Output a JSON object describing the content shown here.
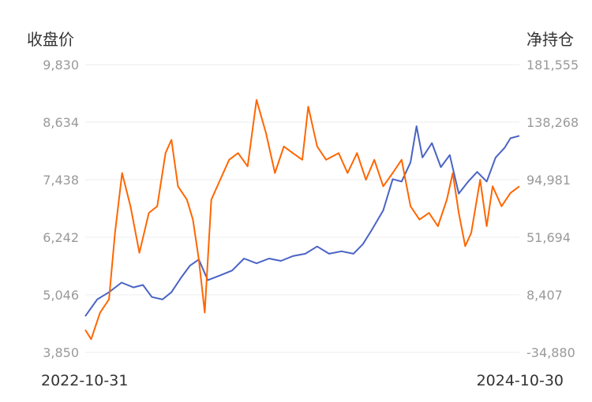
{
  "chart_data": {
    "type": "line",
    "ylabel_left": "收盘价",
    "ylabel_right": "净持仓",
    "x_range": [
      "2022-10-31",
      "2024-10-30"
    ],
    "x_tick_labels": [
      "2022-10-31",
      "2024-10-30"
    ],
    "ylim_left": [
      3850,
      9830
    ],
    "ylim_right": [
      -34880,
      181555
    ],
    "yticks_left": [
      "9,830",
      "8,634",
      "7,438",
      "6,242",
      "5,046",
      "3,850"
    ],
    "yticks_right": [
      "181,555",
      "138,268",
      "94,981",
      "51,694",
      "8,407",
      "-34,880"
    ],
    "grid": true,
    "series": [
      {
        "axis": "left",
        "color": "#4a63c4",
        "points": [
          [
            "2022-10-31",
            4600
          ],
          [
            "2022-11-20",
            4950
          ],
          [
            "2022-12-10",
            5100
          ],
          [
            "2022-12-31",
            5300
          ],
          [
            "2023-01-20",
            5200
          ],
          [
            "2023-02-05",
            5250
          ],
          [
            "2023-02-20",
            5000
          ],
          [
            "2023-03-10",
            4950
          ],
          [
            "2023-03-25",
            5100
          ],
          [
            "2023-04-10",
            5400
          ],
          [
            "2023-04-25",
            5650
          ],
          [
            "2023-05-10",
            5780
          ],
          [
            "2023-05-25",
            5350
          ],
          [
            "2023-06-15",
            5450
          ],
          [
            "2023-07-05",
            5550
          ],
          [
            "2023-07-25",
            5800
          ],
          [
            "2023-08-15",
            5700
          ],
          [
            "2023-09-05",
            5800
          ],
          [
            "2023-09-25",
            5750
          ],
          [
            "2023-10-15",
            5850
          ],
          [
            "2023-11-05",
            5900
          ],
          [
            "2023-11-25",
            6050
          ],
          [
            "2023-12-15",
            5900
          ],
          [
            "2024-01-05",
            5950
          ],
          [
            "2024-01-25",
            5900
          ],
          [
            "2024-02-10",
            6100
          ],
          [
            "2024-02-25",
            6400
          ],
          [
            "2024-03-15",
            6800
          ],
          [
            "2024-03-31",
            7450
          ],
          [
            "2024-04-15",
            7400
          ],
          [
            "2024-04-30",
            7800
          ],
          [
            "2024-05-10",
            8550
          ],
          [
            "2024-05-20",
            7900
          ],
          [
            "2024-06-05",
            8200
          ],
          [
            "2024-06-20",
            7700
          ],
          [
            "2024-07-05",
            7950
          ],
          [
            "2024-07-20",
            7150
          ],
          [
            "2024-08-05",
            7400
          ],
          [
            "2024-08-20",
            7600
          ],
          [
            "2024-09-05",
            7400
          ],
          [
            "2024-09-20",
            7900
          ],
          [
            "2024-10-05",
            8100
          ],
          [
            "2024-10-15",
            8300
          ],
          [
            "2024-10-30",
            8350
          ]
        ]
      },
      {
        "axis": "right",
        "color": "#ff6600",
        "points": [
          [
            "2022-10-31",
            -18000
          ],
          [
            "2022-11-10",
            -25000
          ],
          [
            "2022-11-25",
            -5000
          ],
          [
            "2022-12-10",
            5000
          ],
          [
            "2022-12-20",
            55000
          ],
          [
            "2023-01-01",
            100000
          ],
          [
            "2023-01-15",
            75000
          ],
          [
            "2023-01-30",
            40000
          ],
          [
            "2023-02-15",
            70000
          ],
          [
            "2023-03-01",
            75000
          ],
          [
            "2023-03-15",
            115000
          ],
          [
            "2023-03-25",
            125000
          ],
          [
            "2023-04-05",
            90000
          ],
          [
            "2023-04-20",
            80000
          ],
          [
            "2023-04-30",
            65000
          ],
          [
            "2023-05-10",
            35000
          ],
          [
            "2023-05-20",
            -5000
          ],
          [
            "2023-05-31",
            80000
          ],
          [
            "2023-06-15",
            95000
          ],
          [
            "2023-06-30",
            110000
          ],
          [
            "2023-07-15",
            115000
          ],
          [
            "2023-07-31",
            105000
          ],
          [
            "2023-08-15",
            155000
          ],
          [
            "2023-08-31",
            130000
          ],
          [
            "2023-09-15",
            100000
          ],
          [
            "2023-09-30",
            120000
          ],
          [
            "2023-10-15",
            115000
          ],
          [
            "2023-10-31",
            110000
          ],
          [
            "2023-11-10",
            150000
          ],
          [
            "2023-11-25",
            120000
          ],
          [
            "2023-12-10",
            110000
          ],
          [
            "2023-12-31",
            115000
          ],
          [
            "2024-01-15",
            100000
          ],
          [
            "2024-01-31",
            115000
          ],
          [
            "2024-02-15",
            95000
          ],
          [
            "2024-02-29",
            110000
          ],
          [
            "2024-03-15",
            90000
          ],
          [
            "2024-03-31",
            100000
          ],
          [
            "2024-04-15",
            110000
          ],
          [
            "2024-04-30",
            75000
          ],
          [
            "2024-05-15",
            65000
          ],
          [
            "2024-05-31",
            70000
          ],
          [
            "2024-06-15",
            60000
          ],
          [
            "2024-06-30",
            80000
          ],
          [
            "2024-07-10",
            100000
          ],
          [
            "2024-07-20",
            70000
          ],
          [
            "2024-07-31",
            45000
          ],
          [
            "2024-08-10",
            55000
          ],
          [
            "2024-08-25",
            95000
          ],
          [
            "2024-09-05",
            60000
          ],
          [
            "2024-09-15",
            90000
          ],
          [
            "2024-09-30",
            75000
          ],
          [
            "2024-10-15",
            85000
          ],
          [
            "2024-10-30",
            90000
          ]
        ]
      }
    ]
  }
}
